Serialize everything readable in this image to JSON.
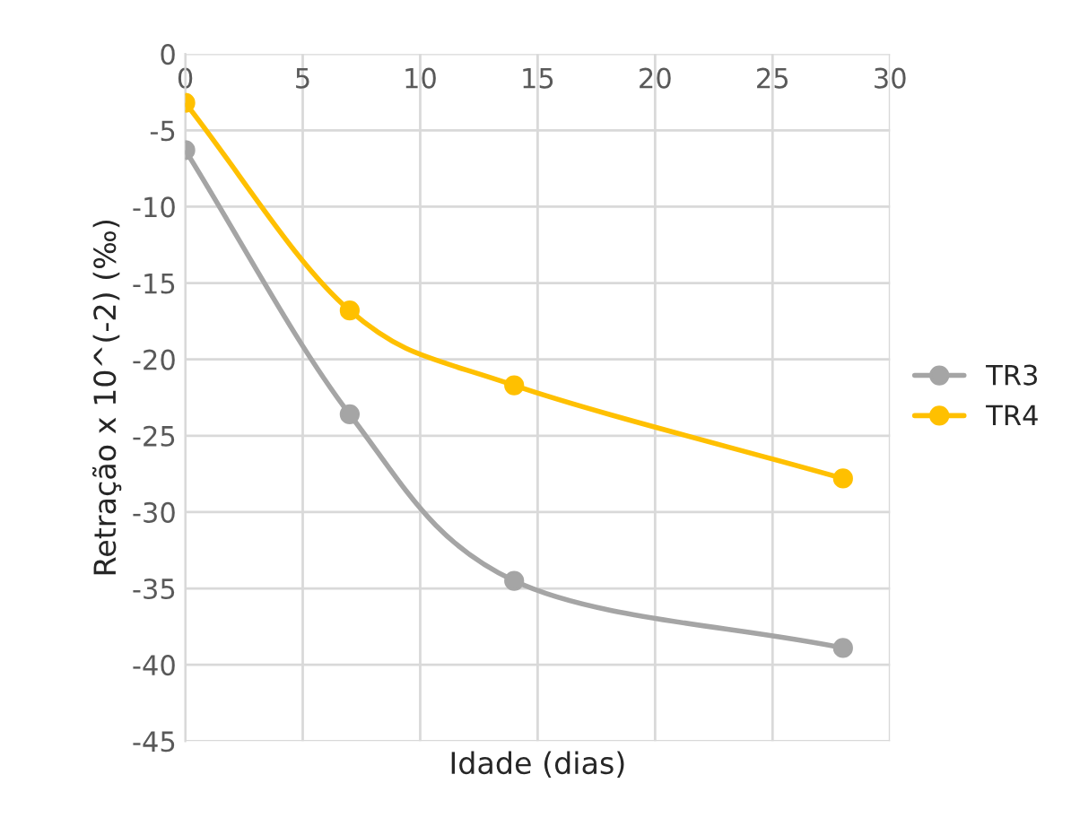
{
  "chart_data": {
    "type": "line",
    "xlabel": "Idade (dias)",
    "ylabel": "Retração x 10^(-2) (‰)",
    "x": [
      0,
      7,
      14,
      28
    ],
    "series": [
      {
        "name": "TR3",
        "color": "#a5a5a5",
        "values": [
          -6.3,
          -23.6,
          -34.5,
          -38.9
        ]
      },
      {
        "name": "TR4",
        "color": "#ffc000",
        "values": [
          -3.2,
          -16.8,
          -21.7,
          -27.8
        ]
      }
    ],
    "xlim": [
      0,
      30
    ],
    "xticks": [
      0,
      5,
      10,
      15,
      20,
      25,
      30
    ],
    "ylim": [
      -45,
      0
    ],
    "yticks": [
      -45,
      -40,
      -35,
      -30,
      -25,
      -20,
      -15,
      -10,
      -5,
      0
    ],
    "grid": true,
    "legend": "right",
    "marker": "circle"
  }
}
